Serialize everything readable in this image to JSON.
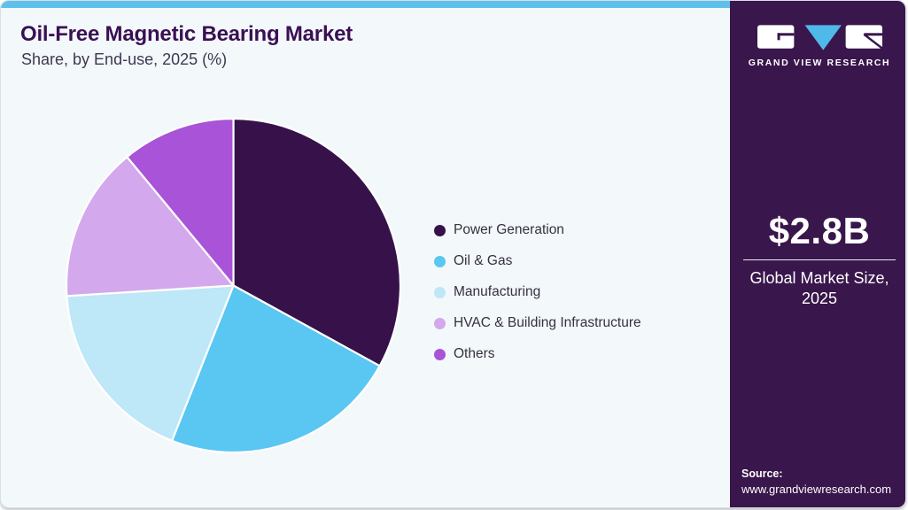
{
  "page": {
    "title": "Oil-Free Magnetic Bearing Market",
    "subtitle": "Share, by End-use, 2025 (%)"
  },
  "chart_data": {
    "type": "pie",
    "title": "Oil-Free Magnetic Bearing Market Share, by End-use, 2025 (%)",
    "unit": "%",
    "start_angle_deg": 0,
    "direction": "clockwise",
    "legend_position": "right",
    "data_labels_shown": false,
    "segments": [
      {
        "label": "Power Generation",
        "value": 33,
        "color": "#371149"
      },
      {
        "label": "Oil & Gas",
        "value": 23,
        "color": "#5AC6F2"
      },
      {
        "label": "Manufacturing",
        "value": 18,
        "color": "#BEE7F8"
      },
      {
        "label": "HVAC & Building Infrastructure",
        "value": 15,
        "color": "#D3A8EC"
      },
      {
        "label": "Others",
        "value": 11,
        "color": "#A853D8"
      }
    ]
  },
  "sidebar": {
    "brand": {
      "name": "GRAND VIEW RESEARCH"
    },
    "market_size": {
      "value": "$2.8B",
      "label_line1": "Global Market Size,",
      "label_line2": "2025"
    },
    "source": {
      "label": "Source:",
      "url": "www.grandviewresearch.com"
    }
  },
  "colors": {
    "accent_bar": "#5EC1EB",
    "card_background": "#F3F8FB",
    "sidebar_background": "#39164B",
    "title_text": "#3A1053",
    "subtitle_text": "#3E3850",
    "legend_text": "#35313F",
    "logo_triangle": "#4FB9EA",
    "white": "#FFFFFF"
  }
}
